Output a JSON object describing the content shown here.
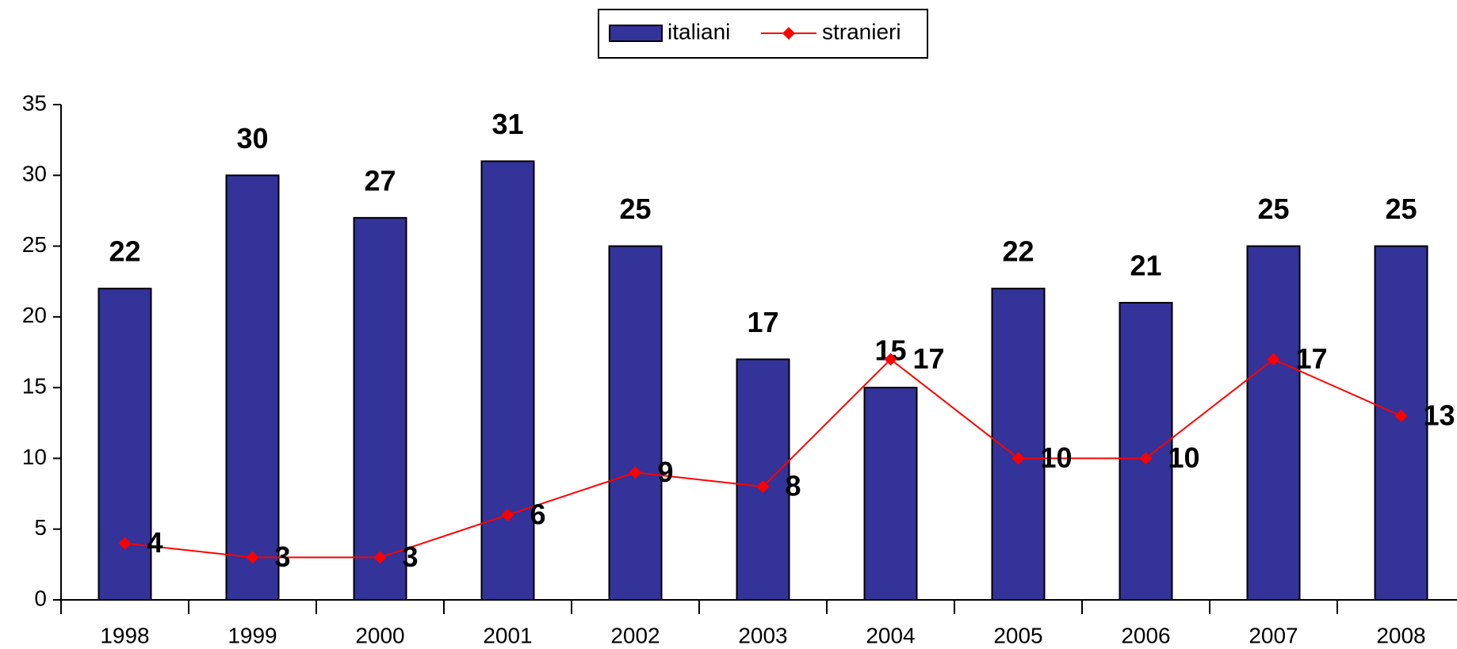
{
  "chart_data": {
    "type": "bar_line",
    "categories": [
      "1998",
      "1999",
      "2000",
      "2001",
      "2002",
      "2003",
      "2004",
      "2005",
      "2006",
      "2007",
      "2008"
    ],
    "series": [
      {
        "name": "italiani",
        "type": "bar",
        "color": "#333399",
        "values": [
          22,
          30,
          27,
          31,
          25,
          17,
          15,
          22,
          21,
          25,
          25
        ]
      },
      {
        "name": "stranieri",
        "type": "line",
        "color": "#ff0000",
        "values": [
          4,
          3,
          3,
          6,
          9,
          8,
          17,
          10,
          10,
          17,
          13
        ]
      }
    ],
    "ylim": [
      0,
      35
    ],
    "yticks": [
      0,
      5,
      10,
      15,
      20,
      25,
      30,
      35
    ],
    "grid": false,
    "legend": "top"
  }
}
